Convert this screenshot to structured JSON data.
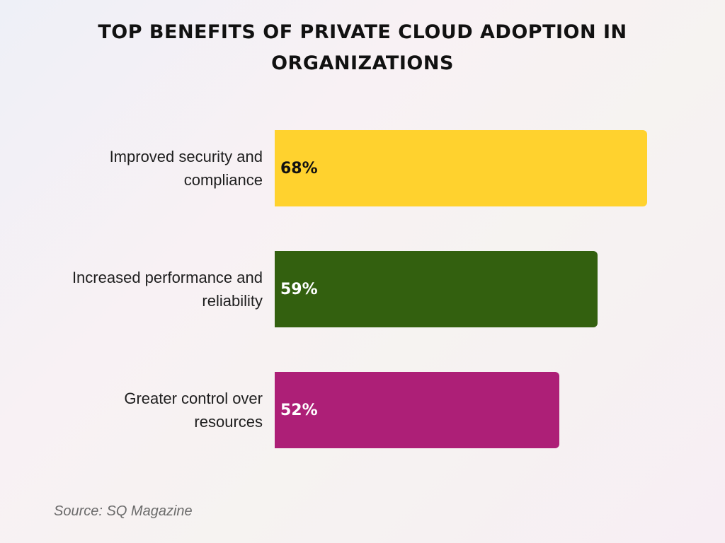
{
  "chart_data": {
    "type": "bar",
    "orientation": "horizontal",
    "title": "TOP BENEFITS OF PRIVATE CLOUD ADOPTION IN ORGANIZATIONS",
    "categories": [
      "Improved security and compliance",
      "Increased performance and reliability",
      "Greater control over resources"
    ],
    "values": [
      68,
      59,
      52
    ],
    "value_labels": [
      "68%",
      "59%",
      "52%"
    ],
    "bar_colors": [
      "#ffd22e",
      "#33600f",
      "#ad1f77"
    ],
    "label_colors": [
      "#111111",
      "#ffffff",
      "#ffffff"
    ],
    "xlim": [
      0,
      68
    ],
    "grid": false,
    "legend": "none",
    "source": "Source: SQ Magazine"
  }
}
